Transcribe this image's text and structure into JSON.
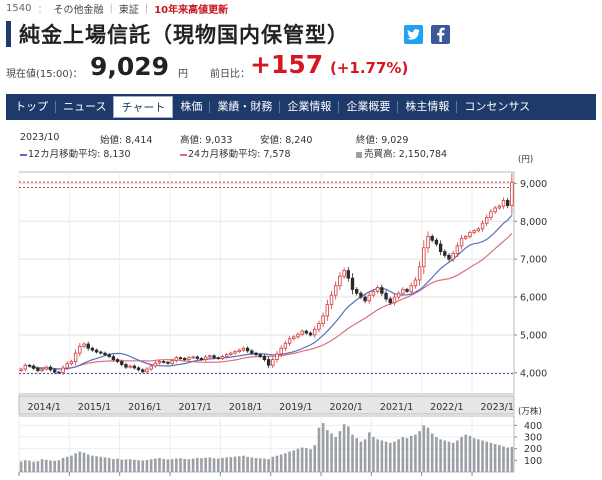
{
  "header": {
    "code": "1540",
    "category": "その他金融",
    "market": "東証",
    "badge": "10年来高値更新"
  },
  "title": "純金上場信託（現物国内保管型）",
  "social": {
    "twitter_icon": "twitter-icon",
    "facebook_icon": "facebook-icon"
  },
  "price": {
    "label": "現在値(15:00)：",
    "value": "9,029",
    "unit": "円",
    "change_label": "前日比：",
    "change": "+157",
    "change_pct": "(+1.77%)",
    "up_color": "#d3181e"
  },
  "nav": {
    "tabs": [
      "トップ",
      "ニュース",
      "チャート",
      "株価",
      "業績・財務",
      "企業情報",
      "企業概要",
      "株主情報",
      "コンセンサス"
    ],
    "active": "チャート"
  },
  "stats": {
    "period": "2023/10",
    "open_label": "始値:",
    "open": "8,414",
    "high_label": "高値:",
    "high": "9,033",
    "low_label": "安値:",
    "low": "8,240",
    "close_label": "終値:",
    "close": "9,029",
    "ma12_label": "12カ月移動平均:",
    "ma12": "8,130",
    "ma24_label": "24カ月移動平均:",
    "ma24": "7,578",
    "volume_label": "売買高:",
    "volume": "2,150,784",
    "ma12_color": "#5b6fbf",
    "ma24_color": "#e06d7a",
    "volume_color": "#9aa0a6"
  },
  "chart_data": {
    "type": "candlestick",
    "price_unit": "(円)",
    "volume_unit": "(万株)",
    "price_ticks": [
      "4,000",
      "5,000",
      "6,000",
      "7,000",
      "8,000",
      "9,000"
    ],
    "price_tick_values": [
      4000,
      5000,
      6000,
      7000,
      8000,
      9000
    ],
    "price_ylim": [
      3600,
      9300
    ],
    "volume_ticks": [
      "100",
      "200",
      "300",
      "400"
    ],
    "volume_tick_values": [
      100,
      200,
      300,
      400
    ],
    "volume_ylim": [
      0,
      480
    ],
    "x_labels": [
      "2014/1",
      "2015/1",
      "2016/1",
      "2017/1",
      "2018/1",
      "2019/1",
      "2020/1",
      "2021/1",
      "2022/1",
      "2023/1"
    ],
    "x_label_months": [
      0,
      12,
      24,
      36,
      48,
      60,
      72,
      84,
      96,
      108
    ],
    "months": 118,
    "reference_lines": [
      9033,
      8890,
      3980
    ],
    "close": [
      4100,
      4200,
      4180,
      4120,
      4060,
      4100,
      4150,
      4080,
      4020,
      4010,
      4130,
      4240,
      4300,
      4520,
      4700,
      4760,
      4650,
      4600,
      4550,
      4520,
      4480,
      4430,
      4350,
      4300,
      4220,
      4150,
      4180,
      4130,
      4080,
      4030,
      4100,
      4180,
      4260,
      4300,
      4280,
      4250,
      4320,
      4400,
      4380,
      4350,
      4400,
      4420,
      4380,
      4350,
      4420,
      4450,
      4400,
      4380,
      4430,
      4480,
      4520,
      4560,
      4600,
      4650,
      4580,
      4520,
      4480,
      4430,
      4350,
      4200,
      4350,
      4500,
      4650,
      4780,
      4900,
      4950,
      5020,
      5100,
      5050,
      5000,
      5150,
      5300,
      5500,
      5800,
      6050,
      6300,
      6550,
      6700,
      6500,
      6200,
      6100,
      6000,
      5900,
      6050,
      6150,
      6250,
      6100,
      5950,
      5850,
      6000,
      6100,
      6200,
      6150,
      6300,
      6450,
      6800,
      7300,
      7600,
      7500,
      7400,
      7200,
      7100,
      7000,
      7150,
      7350,
      7550,
      7600,
      7700,
      7750,
      7800,
      7950,
      8100,
      8250,
      8350,
      8400,
      8550,
      8414,
      9029
    ],
    "volume": [
      90,
      100,
      95,
      88,
      92,
      110,
      105,
      98,
      95,
      100,
      120,
      130,
      140,
      160,
      175,
      165,
      150,
      140,
      135,
      130,
      125,
      120,
      110,
      115,
      105,
      108,
      110,
      105,
      100,
      98,
      102,
      110,
      115,
      120,
      112,
      108,
      110,
      115,
      118,
      112,
      110,
      115,
      120,
      118,
      122,
      125,
      118,
      115,
      120,
      125,
      128,
      132,
      135,
      140,
      130,
      125,
      120,
      118,
      115,
      110,
      130,
      140,
      150,
      160,
      175,
      185,
      200,
      210,
      205,
      195,
      230,
      380,
      420,
      360,
      330,
      300,
      350,
      410,
      390,
      320,
      290,
      260,
      280,
      340,
      300,
      280,
      270,
      260,
      250,
      260,
      280,
      300,
      290,
      310,
      320,
      350,
      400,
      380,
      330,
      300,
      280,
      270,
      260,
      250,
      270,
      300,
      320,
      310,
      290,
      280,
      270,
      260,
      250,
      240,
      230,
      220,
      210,
      215
    ]
  }
}
